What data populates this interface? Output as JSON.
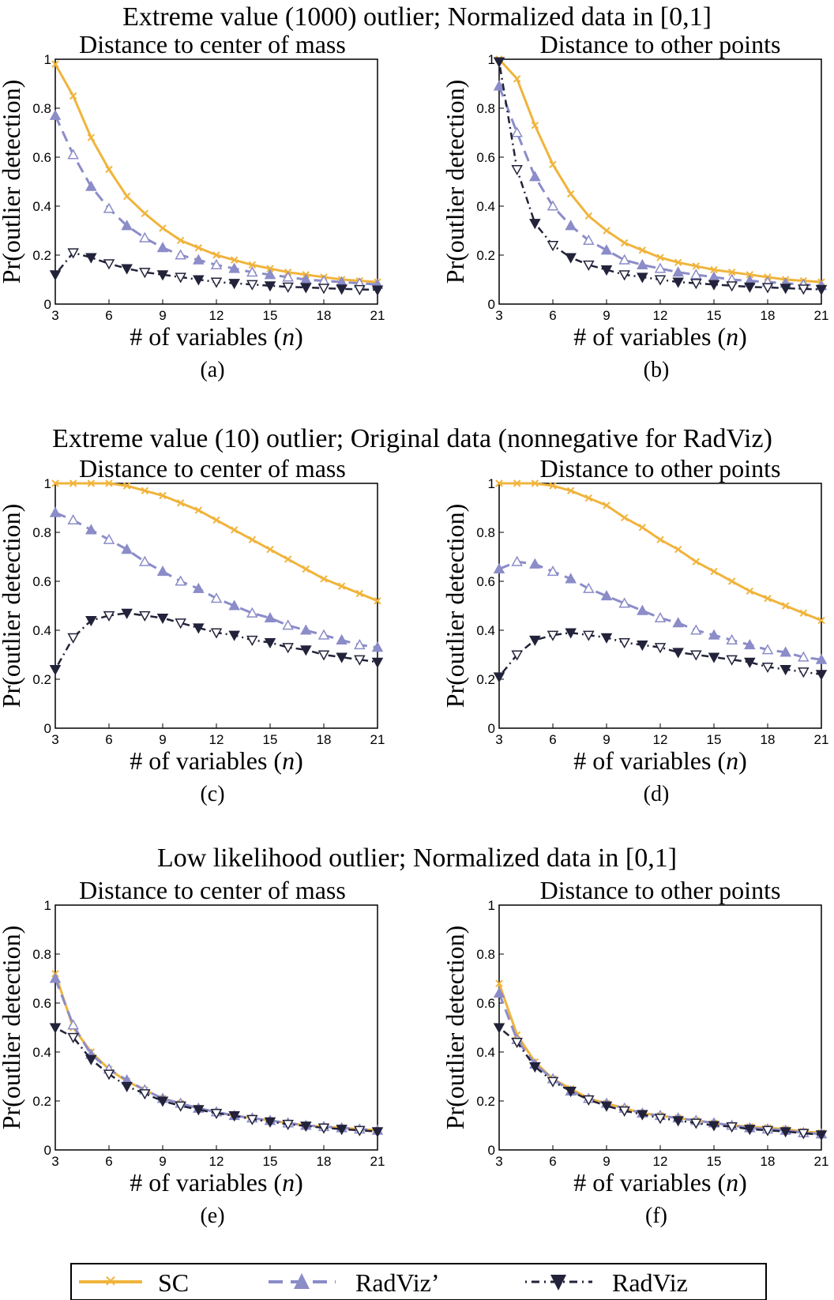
{
  "row_titles": [
    "Extreme value (1000) outlier; Normalized data in [0,1]",
    "Extreme value (10) outlier; Original data (nonnegative for RadViz)",
    "Low likelihood outlier; Normalized data in [0,1]"
  ],
  "legend": {
    "entries": [
      {
        "label": "SC",
        "series": "SC"
      },
      {
        "label": "RadViz’",
        "series": "RadVizPrime"
      },
      {
        "label": "RadViz",
        "series": "RadViz"
      }
    ]
  },
  "colors": {
    "SC": "#F0B43C",
    "RadVizPrime": "#8B8CC8",
    "RadViz": "#22223A",
    "axis": "#000000"
  },
  "chart_data": [
    {
      "type": "line",
      "panel": "a",
      "title": "Distance to center of mass",
      "caption": "(a)",
      "xlabel": "# of variables (n)",
      "ylabel": "Pr(outlier detection)",
      "x": [
        3,
        4,
        5,
        6,
        7,
        8,
        9,
        10,
        11,
        12,
        13,
        14,
        15,
        16,
        17,
        18,
        19,
        20,
        21
      ],
      "xticks": [
        3,
        6,
        9,
        12,
        15,
        18,
        21
      ],
      "yticks": [
        0,
        0.2,
        0.4,
        0.6,
        0.8,
        1
      ],
      "yticklabels": [
        "0",
        "0.2",
        "0.4",
        "0.6",
        "0.8",
        "1"
      ],
      "ylim": [
        0,
        1
      ],
      "xlim": [
        3,
        21
      ],
      "grid": false,
      "series": [
        {
          "name": "SC",
          "values": [
            0.98,
            0.85,
            0.68,
            0.55,
            0.44,
            0.37,
            0.31,
            0.26,
            0.23,
            0.2,
            0.18,
            0.16,
            0.145,
            0.13,
            0.12,
            0.11,
            0.1,
            0.095,
            0.09
          ]
        },
        {
          "name": "RadViz’",
          "values": [
            0.77,
            0.61,
            0.48,
            0.39,
            0.32,
            0.27,
            0.23,
            0.2,
            0.18,
            0.16,
            0.145,
            0.13,
            0.12,
            0.11,
            0.1,
            0.095,
            0.09,
            0.085,
            0.08
          ]
        },
        {
          "name": "RadViz",
          "values": [
            0.12,
            0.21,
            0.19,
            0.165,
            0.145,
            0.13,
            0.12,
            0.11,
            0.1,
            0.09,
            0.085,
            0.08,
            0.075,
            0.07,
            0.068,
            0.065,
            0.062,
            0.06,
            0.058
          ]
        }
      ]
    },
    {
      "type": "line",
      "panel": "b",
      "title": "Distance to other points",
      "caption": "(b)",
      "xlabel": "# of variables (n)",
      "ylabel": "Pr(outlier detection)",
      "x": [
        3,
        4,
        5,
        6,
        7,
        8,
        9,
        10,
        11,
        12,
        13,
        14,
        15,
        16,
        17,
        18,
        19,
        20,
        21
      ],
      "xticks": [
        3,
        6,
        9,
        12,
        15,
        18,
        21
      ],
      "yticks": [
        0,
        0.2,
        0.4,
        0.6,
        0.8,
        1
      ],
      "yticklabels": [
        "0",
        "0.2",
        "0.4",
        "0.6",
        "0.8",
        "1"
      ],
      "ylim": [
        0,
        1
      ],
      "xlim": [
        3,
        21
      ],
      "grid": false,
      "series": [
        {
          "name": "SC",
          "values": [
            1.0,
            0.92,
            0.73,
            0.57,
            0.45,
            0.36,
            0.3,
            0.25,
            0.22,
            0.19,
            0.17,
            0.155,
            0.14,
            0.13,
            0.12,
            0.11,
            0.1,
            0.095,
            0.09
          ]
        },
        {
          "name": "RadViz’",
          "values": [
            0.89,
            0.7,
            0.52,
            0.4,
            0.32,
            0.26,
            0.22,
            0.18,
            0.16,
            0.145,
            0.13,
            0.12,
            0.11,
            0.1,
            0.095,
            0.09,
            0.085,
            0.08,
            0.075
          ]
        },
        {
          "name": "RadViz",
          "values": [
            0.99,
            0.55,
            0.33,
            0.24,
            0.19,
            0.16,
            0.14,
            0.12,
            0.11,
            0.1,
            0.09,
            0.085,
            0.08,
            0.075,
            0.07,
            0.068,
            0.065,
            0.062,
            0.06
          ]
        }
      ]
    },
    {
      "type": "line",
      "panel": "c",
      "title": "Distance to center of mass",
      "caption": "(c)",
      "xlabel": "# of variables (n)",
      "ylabel": "Pr(outlier detection)",
      "x": [
        3,
        4,
        5,
        6,
        7,
        8,
        9,
        10,
        11,
        12,
        13,
        14,
        15,
        16,
        17,
        18,
        19,
        20,
        21
      ],
      "xticks": [
        3,
        6,
        9,
        12,
        15,
        18,
        21
      ],
      "yticks": [
        0,
        0.2,
        0.4,
        0.6,
        0.8,
        1
      ],
      "yticklabels": [
        "0",
        "0.2",
        "0.4",
        "0.6",
        "0.8",
        "1"
      ],
      "ylim": [
        0,
        1
      ],
      "xlim": [
        3,
        21
      ],
      "grid": false,
      "series": [
        {
          "name": "SC",
          "values": [
            1.0,
            1.0,
            1.0,
            1.0,
            0.99,
            0.97,
            0.95,
            0.92,
            0.89,
            0.85,
            0.81,
            0.77,
            0.73,
            0.69,
            0.65,
            0.61,
            0.58,
            0.55,
            0.52
          ]
        },
        {
          "name": "RadViz’",
          "values": [
            0.88,
            0.85,
            0.81,
            0.77,
            0.73,
            0.68,
            0.64,
            0.6,
            0.57,
            0.53,
            0.5,
            0.47,
            0.45,
            0.42,
            0.4,
            0.38,
            0.36,
            0.34,
            0.33
          ]
        },
        {
          "name": "RadViz",
          "values": [
            0.24,
            0.37,
            0.44,
            0.46,
            0.47,
            0.46,
            0.45,
            0.43,
            0.41,
            0.39,
            0.38,
            0.36,
            0.35,
            0.33,
            0.32,
            0.3,
            0.29,
            0.28,
            0.27
          ]
        }
      ]
    },
    {
      "type": "line",
      "panel": "d",
      "title": "Distance to other points",
      "caption": "(d)",
      "xlabel": "# of variables (n)",
      "ylabel": "Pr(outlier detection)",
      "x": [
        3,
        4,
        5,
        6,
        7,
        8,
        9,
        10,
        11,
        12,
        13,
        14,
        15,
        16,
        17,
        18,
        19,
        20,
        21
      ],
      "xticks": [
        3,
        6,
        9,
        12,
        15,
        18,
        21
      ],
      "yticks": [
        0,
        0.2,
        0.4,
        0.6,
        0.8,
        1
      ],
      "yticklabels": [
        "0",
        "0.2",
        "0.4",
        "0.6",
        "0.8",
        "1"
      ],
      "ylim": [
        0,
        1
      ],
      "xlim": [
        3,
        21
      ],
      "grid": false,
      "series": [
        {
          "name": "SC",
          "values": [
            1.0,
            1.0,
            1.0,
            0.99,
            0.97,
            0.94,
            0.91,
            0.86,
            0.82,
            0.77,
            0.73,
            0.68,
            0.64,
            0.6,
            0.56,
            0.53,
            0.5,
            0.47,
            0.44
          ]
        },
        {
          "name": "RadViz’",
          "values": [
            0.65,
            0.68,
            0.67,
            0.64,
            0.61,
            0.57,
            0.54,
            0.51,
            0.48,
            0.45,
            0.43,
            0.4,
            0.38,
            0.36,
            0.34,
            0.32,
            0.31,
            0.29,
            0.28
          ]
        },
        {
          "name": "RadViz",
          "values": [
            0.21,
            0.3,
            0.36,
            0.38,
            0.39,
            0.38,
            0.37,
            0.35,
            0.34,
            0.33,
            0.31,
            0.3,
            0.29,
            0.28,
            0.27,
            0.25,
            0.24,
            0.23,
            0.22
          ]
        }
      ]
    },
    {
      "type": "line",
      "panel": "e",
      "title": "Distance to center of mass",
      "caption": "(e)",
      "xlabel": "# of variables (n)",
      "ylabel": "Pr(outlier detection)",
      "x": [
        3,
        4,
        5,
        6,
        7,
        8,
        9,
        10,
        11,
        12,
        13,
        14,
        15,
        16,
        17,
        18,
        19,
        20,
        21
      ],
      "xticks": [
        3,
        6,
        9,
        12,
        15,
        18,
        21
      ],
      "yticks": [
        0,
        0.2,
        0.4,
        0.6,
        0.8,
        1
      ],
      "yticklabels": [
        "0",
        "0.2",
        "0.4",
        "0.6",
        "0.8",
        "1"
      ],
      "ylim": [
        0,
        1
      ],
      "xlim": [
        3,
        21
      ],
      "grid": false,
      "series": [
        {
          "name": "SC",
          "values": [
            0.72,
            0.5,
            0.4,
            0.33,
            0.28,
            0.245,
            0.21,
            0.19,
            0.17,
            0.155,
            0.14,
            0.13,
            0.12,
            0.11,
            0.1,
            0.095,
            0.09,
            0.085,
            0.08
          ]
        },
        {
          "name": "RadViz’",
          "values": [
            0.7,
            0.51,
            0.39,
            0.33,
            0.285,
            0.245,
            0.21,
            0.19,
            0.17,
            0.155,
            0.14,
            0.13,
            0.12,
            0.11,
            0.1,
            0.095,
            0.09,
            0.085,
            0.08
          ]
        },
        {
          "name": "RadViz",
          "values": [
            0.5,
            0.46,
            0.37,
            0.31,
            0.26,
            0.23,
            0.2,
            0.18,
            0.165,
            0.15,
            0.14,
            0.125,
            0.115,
            0.105,
            0.098,
            0.09,
            0.085,
            0.08,
            0.075
          ]
        }
      ]
    },
    {
      "type": "line",
      "panel": "f",
      "title": "Distance to other points",
      "caption": "(f)",
      "xlabel": "# of variables (n)",
      "ylabel": "Pr(outlier detection)",
      "x": [
        3,
        4,
        5,
        6,
        7,
        8,
        9,
        10,
        11,
        12,
        13,
        14,
        15,
        16,
        17,
        18,
        19,
        20,
        21
      ],
      "xticks": [
        3,
        6,
        9,
        12,
        15,
        18,
        21
      ],
      "yticks": [
        0,
        0.2,
        0.4,
        0.6,
        0.8,
        1
      ],
      "yticklabels": [
        "0",
        "0.2",
        "0.4",
        "0.6",
        "0.8",
        "1"
      ],
      "ylim": [
        0,
        1
      ],
      "xlim": [
        3,
        21
      ],
      "grid": false,
      "series": [
        {
          "name": "SC",
          "values": [
            0.68,
            0.47,
            0.36,
            0.29,
            0.25,
            0.21,
            0.19,
            0.17,
            0.15,
            0.14,
            0.13,
            0.12,
            0.11,
            0.1,
            0.095,
            0.09,
            0.085,
            0.075,
            0.07
          ]
        },
        {
          "name": "RadViz’",
          "values": [
            0.64,
            0.45,
            0.35,
            0.29,
            0.24,
            0.21,
            0.19,
            0.17,
            0.15,
            0.14,
            0.13,
            0.12,
            0.11,
            0.1,
            0.09,
            0.085,
            0.08,
            0.07,
            0.065
          ]
        },
        {
          "name": "RadViz",
          "values": [
            0.5,
            0.44,
            0.34,
            0.28,
            0.24,
            0.205,
            0.18,
            0.16,
            0.145,
            0.13,
            0.12,
            0.11,
            0.1,
            0.095,
            0.085,
            0.08,
            0.075,
            0.068,
            0.062
          ]
        }
      ]
    }
  ]
}
